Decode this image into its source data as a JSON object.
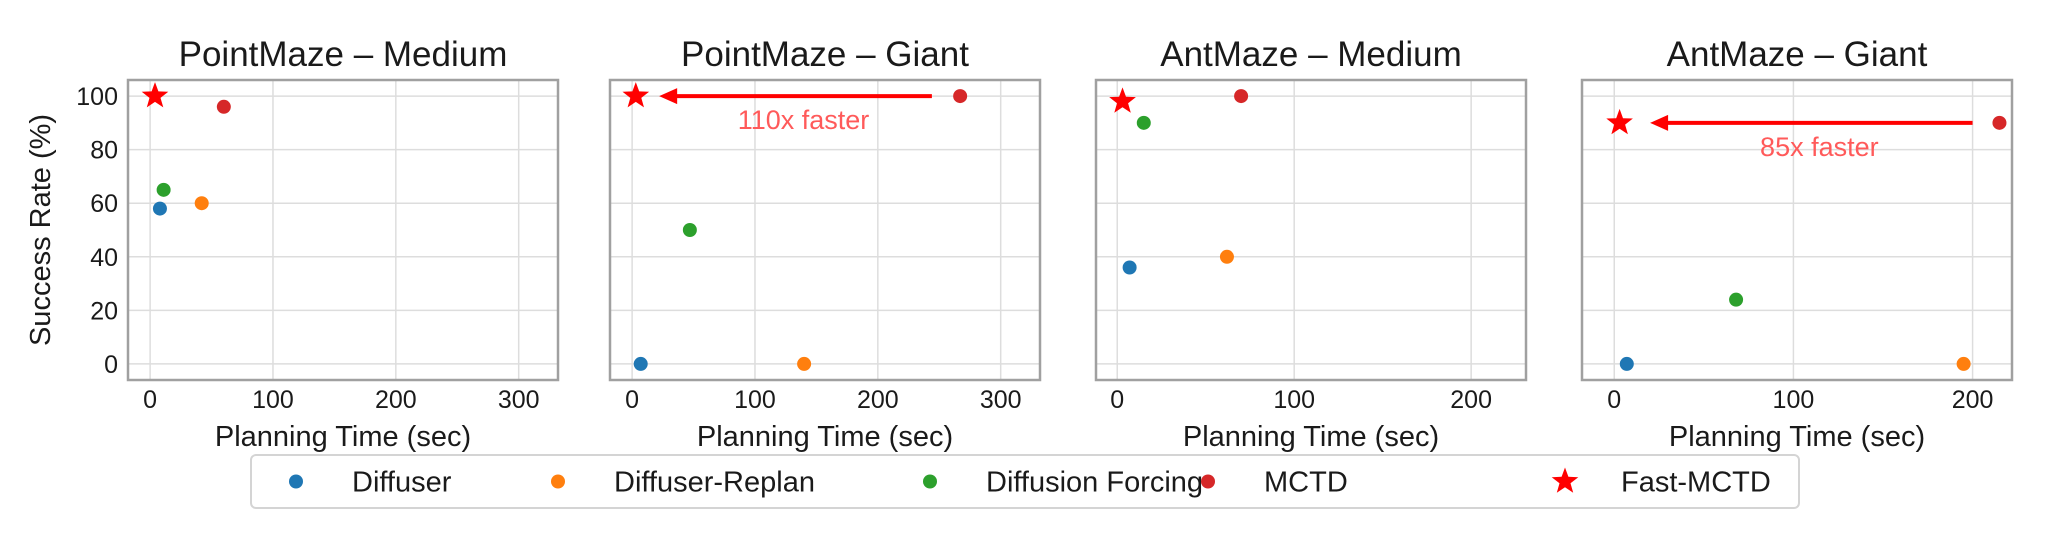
{
  "chart_data": [
    {
      "type": "scatter",
      "title": "PointMaze – Medium",
      "xlabel": "Planning Time (sec)",
      "ylabel": "Success Rate (%)",
      "xlim": [
        -18,
        332
      ],
      "ylim": [
        -6,
        106
      ],
      "xticks": [
        0,
        100,
        200,
        300
      ],
      "yticks": [
        0,
        20,
        40,
        60,
        80,
        100
      ],
      "grid": true,
      "series": [
        {
          "name": "Diffuser",
          "x": [
            8
          ],
          "y": [
            58
          ]
        },
        {
          "name": "Diffuser-Replan",
          "x": [
            42
          ],
          "y": [
            60
          ]
        },
        {
          "name": "Diffusion Forcing",
          "x": [
            11
          ],
          "y": [
            65
          ]
        },
        {
          "name": "MCTD",
          "x": [
            60
          ],
          "y": [
            96
          ]
        },
        {
          "name": "Fast-MCTD",
          "x": [
            4
          ],
          "y": [
            100
          ]
        }
      ]
    },
    {
      "type": "scatter",
      "title": "PointMaze – Giant",
      "xlabel": "Planning Time (sec)",
      "ylabel": "",
      "xlim": [
        -18,
        332
      ],
      "ylim": [
        -6,
        106
      ],
      "xticks": [
        0,
        100,
        200,
        300
      ],
      "yticks": [
        0,
        20,
        40,
        60,
        80,
        100
      ],
      "grid": true,
      "series": [
        {
          "name": "Diffuser",
          "x": [
            7
          ],
          "y": [
            0
          ]
        },
        {
          "name": "Diffuser-Replan",
          "x": [
            140
          ],
          "y": [
            0
          ]
        },
        {
          "name": "Diffusion Forcing",
          "x": [
            47
          ],
          "y": [
            50
          ]
        },
        {
          "name": "MCTD",
          "x": [
            267
          ],
          "y": [
            100
          ]
        },
        {
          "name": "Fast-MCTD",
          "x": [
            3
          ],
          "y": [
            100
          ]
        }
      ],
      "annotation": {
        "text": "110x faster",
        "arrow_from": [
          244,
          100
        ],
        "arrow_to": [
          22,
          100
        ]
      }
    },
    {
      "type": "scatter",
      "title": "AntMaze – Medium",
      "xlabel": "Planning Time (sec)",
      "ylabel": "",
      "xlim": [
        -12,
        231
      ],
      "ylim": [
        -6,
        106
      ],
      "xticks": [
        0,
        100,
        200
      ],
      "yticks": [
        0,
        20,
        40,
        60,
        80,
        100
      ],
      "grid": true,
      "series": [
        {
          "name": "Diffuser",
          "x": [
            7
          ],
          "y": [
            36
          ]
        },
        {
          "name": "Diffuser-Replan",
          "x": [
            62
          ],
          "y": [
            40
          ]
        },
        {
          "name": "Diffusion Forcing",
          "x": [
            15
          ],
          "y": [
            90
          ]
        },
        {
          "name": "MCTD",
          "x": [
            70
          ],
          "y": [
            100
          ]
        },
        {
          "name": "Fast-MCTD",
          "x": [
            3
          ],
          "y": [
            98
          ]
        }
      ]
    },
    {
      "type": "scatter",
      "title": "AntMaze – Giant",
      "xlabel": "Planning Time (sec)",
      "ylabel": "",
      "xlim": [
        -18,
        222
      ],
      "ylim": [
        -6,
        106
      ],
      "xticks": [
        0,
        100,
        200
      ],
      "yticks": [
        0,
        20,
        40,
        60,
        80,
        100
      ],
      "grid": true,
      "series": [
        {
          "name": "Diffuser",
          "x": [
            7
          ],
          "y": [
            0
          ]
        },
        {
          "name": "Diffuser-Replan",
          "x": [
            195
          ],
          "y": [
            0
          ]
        },
        {
          "name": "Diffusion Forcing",
          "x": [
            68
          ],
          "y": [
            24
          ]
        },
        {
          "name": "MCTD",
          "x": [
            215
          ],
          "y": [
            90
          ]
        },
        {
          "name": "Fast-MCTD",
          "x": [
            3
          ],
          "y": [
            90
          ]
        }
      ],
      "annotation": {
        "text": "85x faster",
        "arrow_from": [
          200,
          90
        ],
        "arrow_to": [
          20,
          90
        ]
      }
    }
  ],
  "legend": {
    "placement": "bottom-center",
    "items": [
      {
        "label": "Diffuser",
        "color": "#1f77b4",
        "marker": "circle"
      },
      {
        "label": "Diffuser-Replan",
        "color": "#ff7f0e",
        "marker": "circle"
      },
      {
        "label": "Diffusion Forcing",
        "color": "#2ca02c",
        "marker": "circle"
      },
      {
        "label": "MCTD",
        "color": "#d62728",
        "marker": "circle"
      },
      {
        "label": "Fast-MCTD",
        "color": "#ff0000",
        "marker": "star"
      }
    ]
  },
  "colors": {
    "Diffuser": "#1f77b4",
    "Diffuser-Replan": "#ff7f0e",
    "Diffusion Forcing": "#2ca02c",
    "MCTD": "#d62728",
    "Fast-MCTD": "#ff0000",
    "annotation_arrow": "#ff0000",
    "annotation_text": "#ff5a5a",
    "grid": "#dddddd",
    "frame": "#a0a0a0"
  }
}
